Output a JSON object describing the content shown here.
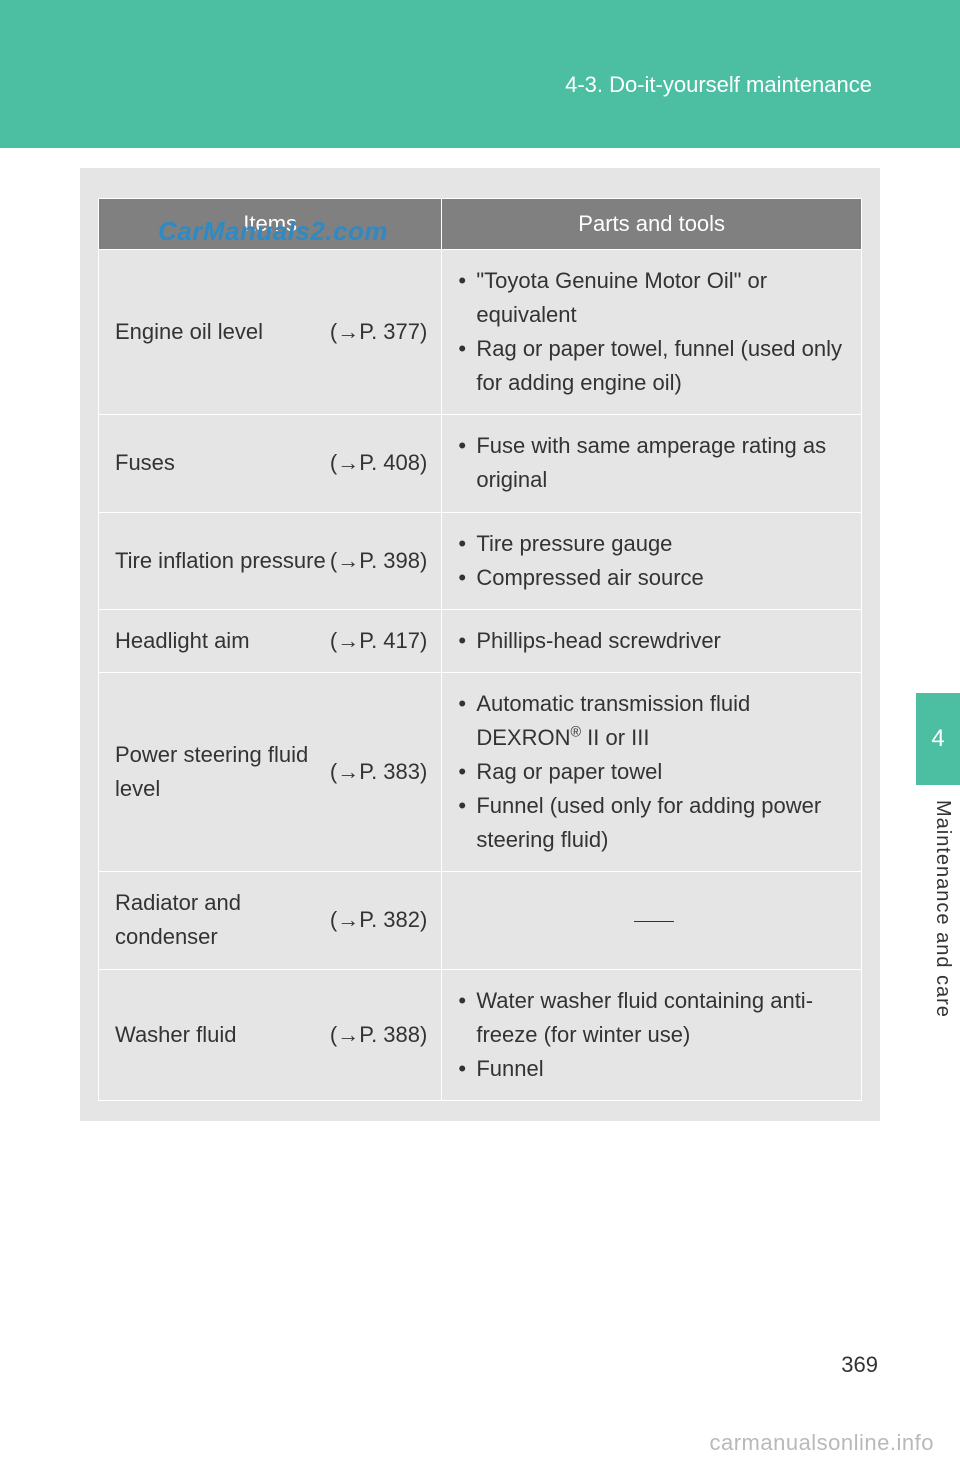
{
  "colors": {
    "accent": "#4cbfa2",
    "header_bg": "#808080",
    "content_bg": "#e5e5e5",
    "text": "#333333",
    "watermark": "#2f8ac4",
    "footer_wm": "#b9b9b9"
  },
  "header": {
    "section_title": "4-3. Do-it-yourself maintenance"
  },
  "watermark_text": "CarManuals2.com",
  "table": {
    "columns": [
      "Items",
      "Parts and tools"
    ],
    "rows": [
      {
        "item": "Engine oil level",
        "ref": "(→P. 377)",
        "tools": [
          "\"Toyota Genuine Motor Oil\" or equivalent",
          "Rag or paper towel, funnel (used only for adding engine oil)"
        ]
      },
      {
        "item": "Fuses",
        "ref": "(→P. 408)",
        "tools": [
          "Fuse with same amperage rating as original"
        ]
      },
      {
        "item": "Tire inflation pressure",
        "ref": "(→P. 398)",
        "tools": [
          "Tire pressure gauge",
          "Compressed air source"
        ]
      },
      {
        "item": "Headlight aim",
        "ref": "(→P. 417)",
        "tools": [
          "Phillips-head screwdriver"
        ]
      },
      {
        "item": "Power steering fluid level",
        "ref": "(→P. 383)",
        "tools": [
          "Automatic transmission fluid DEXRON® II or III",
          "Rag or paper towel",
          "Funnel (used only for adding power steering fluid)"
        ]
      },
      {
        "item": "Radiator and condenser",
        "ref": "(→P. 382)",
        "tools_empty": true
      },
      {
        "item": "Washer fluid",
        "ref": "(→P. 388)",
        "tools": [
          "Water washer fluid containing anti-freeze (for winter use)",
          "Funnel"
        ]
      }
    ]
  },
  "side": {
    "tab_number": "4",
    "label": "Maintenance and care"
  },
  "page_number": "369",
  "footer_watermark": "carmanualsonline.info"
}
